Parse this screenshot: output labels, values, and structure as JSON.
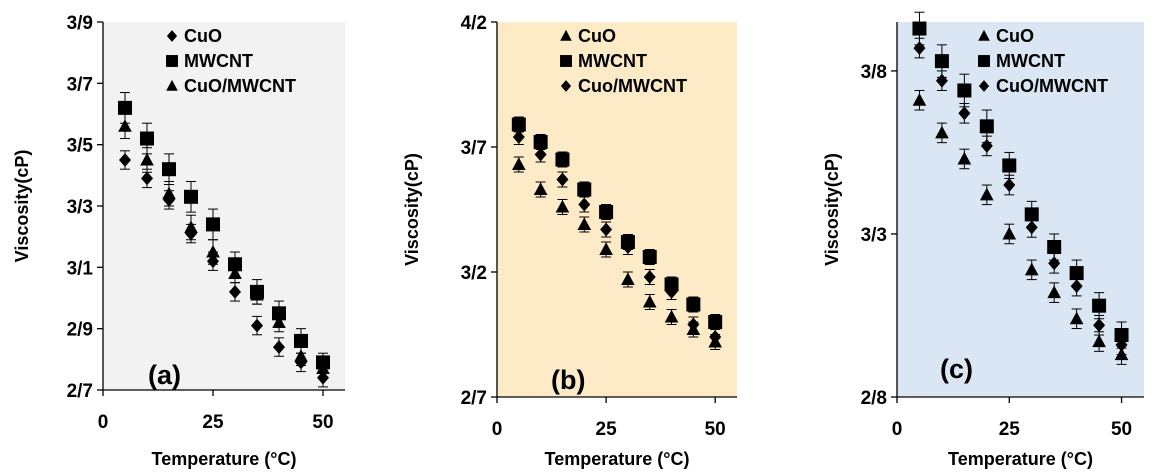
{
  "chart_data": [
    {
      "type": "scatter",
      "panel_label": "(a)",
      "background": "#f2f2f2",
      "xlabel": "Temperature (°C)",
      "ylabel": "Viscosity(cP)",
      "xlim": [
        0,
        55
      ],
      "ylim": [
        2.7,
        3.9
      ],
      "xticks": [
        0,
        25,
        50
      ],
      "xtick_labels": [
        "0",
        "25",
        "50"
      ],
      "yticks": [
        2.7,
        2.9,
        3.1,
        3.3,
        3.5,
        3.7,
        3.9
      ],
      "ytick_labels": [
        "2/7",
        "2/9",
        "3/1",
        "3/3",
        "3/5",
        "3/7",
        "3/9"
      ],
      "legend_position": "top-center",
      "series": [
        {
          "name": "CuO",
          "marker": "diamond",
          "x": [
            5,
            10,
            15,
            20,
            25,
            30,
            35,
            40,
            45,
            50
          ],
          "y": [
            3.45,
            3.39,
            3.32,
            3.21,
            3.12,
            3.02,
            2.91,
            2.84,
            2.79,
            2.74
          ],
          "err": [
            0.03,
            0.03,
            0.03,
            0.03,
            0.03,
            0.03,
            0.03,
            0.03,
            0.03,
            0.03
          ]
        },
        {
          "name": "MWCNT",
          "marker": "square",
          "x": [
            5,
            10,
            15,
            20,
            25,
            30,
            35,
            40,
            45,
            50
          ],
          "y": [
            3.62,
            3.52,
            3.42,
            3.33,
            3.24,
            3.11,
            3.02,
            2.95,
            2.86,
            2.79
          ],
          "err": [
            0.05,
            0.05,
            0.05,
            0.05,
            0.05,
            0.04,
            0.04,
            0.04,
            0.04,
            0.03
          ]
        },
        {
          "name": "CuO/MWCNT",
          "marker": "triangle",
          "x": [
            5,
            10,
            15,
            20,
            25,
            30,
            35,
            40,
            45,
            50
          ],
          "y": [
            3.56,
            3.45,
            3.34,
            3.23,
            3.15,
            3.08,
            3.01,
            2.92,
            2.81,
            2.77
          ],
          "err": [
            0.04,
            0.04,
            0.04,
            0.04,
            0.04,
            0.03,
            0.03,
            0.03,
            0.03,
            0.03
          ]
        }
      ]
    },
    {
      "type": "scatter",
      "panel_label": "(b)",
      "background": "#fdebc8",
      "xlabel": "Temperature (°C)",
      "ylabel": "Viscosity(cP)",
      "xlim": [
        0,
        55
      ],
      "ylim": [
        2.7,
        4.2
      ],
      "xticks": [
        0,
        25,
        50
      ],
      "xtick_labels": [
        "0",
        "25",
        "50"
      ],
      "yticks": [
        2.7,
        3.2,
        3.7,
        4.2
      ],
      "ytick_labels": [
        "2/7",
        "3/2",
        "3/7",
        "4/2"
      ],
      "legend_position": "top-center",
      "series": [
        {
          "name": "CuO",
          "marker": "triangle",
          "x": [
            5,
            10,
            15,
            20,
            25,
            30,
            35,
            40,
            45,
            50
          ],
          "y": [
            3.63,
            3.53,
            3.46,
            3.39,
            3.29,
            3.17,
            3.08,
            3.02,
            2.97,
            2.92
          ],
          "err": [
            0.03,
            0.03,
            0.03,
            0.03,
            0.03,
            0.03,
            0.03,
            0.03,
            0.03,
            0.03
          ]
        },
        {
          "name": "MWCNT",
          "marker": "square",
          "x": [
            5,
            10,
            15,
            20,
            25,
            30,
            35,
            40,
            45,
            50
          ],
          "y": [
            3.79,
            3.72,
            3.65,
            3.53,
            3.44,
            3.32,
            3.26,
            3.15,
            3.07,
            3.0
          ],
          "err": [
            0.03,
            0.03,
            0.03,
            0.03,
            0.03,
            0.03,
            0.03,
            0.03,
            0.03,
            0.03
          ]
        },
        {
          "name": "Cuo/MWCNT",
          "marker": "diamond",
          "x": [
            5,
            10,
            15,
            20,
            25,
            30,
            35,
            40,
            45,
            50
          ],
          "y": [
            3.74,
            3.67,
            3.57,
            3.47,
            3.37,
            3.3,
            3.18,
            3.12,
            2.99,
            2.94
          ],
          "err": [
            0.03,
            0.03,
            0.03,
            0.03,
            0.03,
            0.03,
            0.03,
            0.03,
            0.03,
            0.03
          ]
        }
      ]
    },
    {
      "type": "scatter",
      "panel_label": "(c)",
      "background": "#dae6f4",
      "xlabel": "Temperature (°C)",
      "ylabel": "Viscosity(cP)",
      "xlim": [
        0,
        55
      ],
      "ylim": [
        2.8,
        3.95
      ],
      "xticks": [
        0,
        25,
        50
      ],
      "xtick_labels": [
        "0",
        "25",
        "50"
      ],
      "yticks": [
        2.8,
        3.3,
        3.8
      ],
      "ytick_labels": [
        "2/8",
        "3/3",
        "3/8"
      ],
      "legend_position": "top-center",
      "series": [
        {
          "name": "CuO",
          "marker": "triangle",
          "x": [
            5,
            10,
            15,
            20,
            25,
            30,
            35,
            40,
            45,
            50
          ],
          "y": [
            3.71,
            3.61,
            3.53,
            3.42,
            3.3,
            3.19,
            3.12,
            3.04,
            2.97,
            2.93
          ],
          "err": [
            0.03,
            0.03,
            0.03,
            0.03,
            0.03,
            0.03,
            0.03,
            0.03,
            0.03,
            0.03
          ]
        },
        {
          "name": "MWCNT",
          "marker": "square",
          "x": [
            5,
            10,
            15,
            20,
            25,
            30,
            35,
            40,
            45,
            50
          ],
          "y": [
            3.93,
            3.83,
            3.74,
            3.63,
            3.51,
            3.36,
            3.26,
            3.18,
            3.08,
            2.99
          ],
          "err": [
            0.05,
            0.05,
            0.05,
            0.05,
            0.04,
            0.04,
            0.04,
            0.04,
            0.04,
            0.04
          ]
        },
        {
          "name": "CuO/MWCNT",
          "marker": "diamond",
          "x": [
            5,
            10,
            15,
            20,
            25,
            30,
            35,
            40,
            45,
            50
          ],
          "y": [
            3.87,
            3.77,
            3.67,
            3.57,
            3.45,
            3.32,
            3.21,
            3.14,
            3.02,
            2.96
          ],
          "err": [
            0.03,
            0.03,
            0.03,
            0.03,
            0.03,
            0.03,
            0.03,
            0.03,
            0.03,
            0.03
          ]
        }
      ]
    }
  ]
}
